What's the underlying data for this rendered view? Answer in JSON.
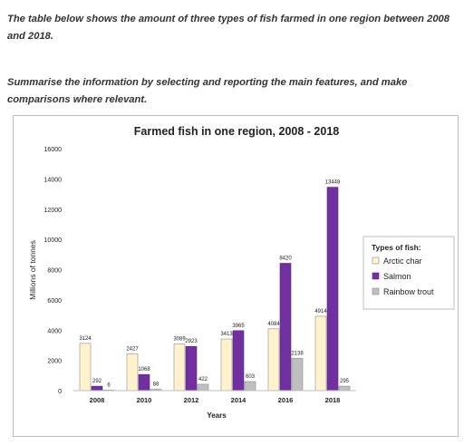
{
  "prompt": {
    "line1": "The table below shows the amount of three types of fish farmed in one region between 2008 and 2018.",
    "line2": "Summarise the information by selecting and reporting the main features, and make comparisons where relevant."
  },
  "chart_data": {
    "type": "bar",
    "title": "Farmed fish in one region, 2008 - 2018",
    "xlabel": "Years",
    "ylabel": "Millions of tonnes",
    "ylim": [
      0,
      16000
    ],
    "yticks": [
      "0",
      "2000",
      "4000",
      "6000",
      "8000",
      "10000",
      "12000",
      "14000",
      "16000"
    ],
    "categories": [
      "2008",
      "2010",
      "2012",
      "2014",
      "2016",
      "2018"
    ],
    "legend_title": "Types of fish:",
    "legend_position": "right",
    "grid": false,
    "series": [
      {
        "name": "Arctic char",
        "color": "#fff2cc",
        "values": [
          3124,
          2427,
          3089,
          3413,
          4084,
          4914
        ],
        "labels": [
          "3124",
          "2427",
          "3089",
          "3413",
          "4084",
          "4914"
        ]
      },
      {
        "name": "Salmon",
        "color": "#7030a0",
        "values": [
          292,
          1068,
          2923,
          3965,
          8420,
          13448
        ],
        "labels": [
          "292",
          "1068",
          "2923",
          "3965",
          "8420",
          "13448"
        ]
      },
      {
        "name": "Rainbow trout",
        "color": "#bfbfbf",
        "values": [
          6,
          88,
          422,
          603,
          2138,
          295
        ],
        "labels": [
          "6",
          "88",
          "422",
          "603",
          "2138",
          "295"
        ]
      }
    ]
  }
}
